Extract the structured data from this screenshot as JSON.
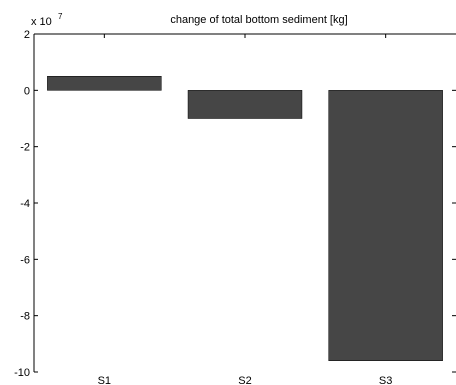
{
  "chart_data": {
    "type": "bar",
    "title": "change of total bottom sediment [kg]",
    "categories": [
      "S1",
      "S2",
      "S3"
    ],
    "values": [
      5000000,
      -10000000,
      -96000000
    ],
    "ylim": [
      -100000000,
      20000000
    ],
    "yticks": [
      2,
      0,
      -2,
      -4,
      -6,
      -8,
      -10
    ],
    "ytick_labels": [
      "2",
      "0",
      "-2",
      "-4",
      "-6",
      "-8",
      "-10"
    ],
    "y_multiplier": {
      "base": "x 10",
      "exponent": "7"
    },
    "bar_color": "#464646",
    "grid": false
  }
}
